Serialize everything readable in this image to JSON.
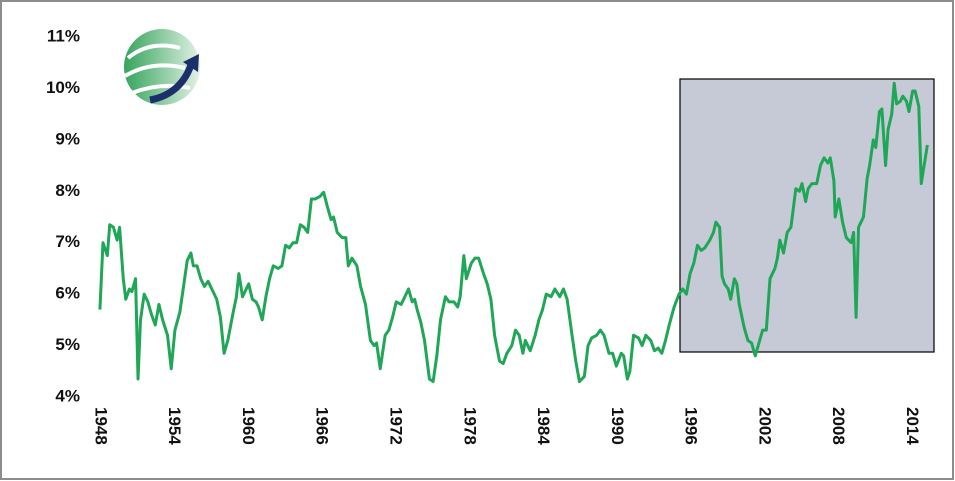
{
  "chart_data": {
    "type": "line",
    "color": "#1fa757",
    "xlim": [
      1947.6,
      2016
    ],
    "xticks": [
      1948,
      1954,
      1960,
      1966,
      1972,
      1978,
      1984,
      1990,
      1996,
      2002,
      2008,
      2014
    ],
    "ylim": [
      4,
      11
    ],
    "yticks": [
      {
        "value": 4,
        "label": "4%"
      },
      {
        "value": 5,
        "label": "5%"
      },
      {
        "value": 6,
        "label": "6%"
      },
      {
        "value": 7,
        "label": "7%"
      },
      {
        "value": 8,
        "label": "8%"
      },
      {
        "value": 9,
        "label": "9%"
      },
      {
        "value": 10,
        "label": "10%"
      },
      {
        "value": 11,
        "label": "11%"
      }
    ],
    "x": [
      1948.0,
      1948.25,
      1948.6,
      1948.8,
      1949.1,
      1949.4,
      1949.6,
      1949.9,
      1950.1,
      1950.4,
      1950.6,
      1950.9,
      1951.1,
      1951.3,
      1951.6,
      1951.9,
      1952.2,
      1952.5,
      1952.8,
      1953.1,
      1953.5,
      1953.8,
      1954.1,
      1954.5,
      1954.8,
      1955.1,
      1955.4,
      1955.6,
      1955.9,
      1956.2,
      1956.5,
      1956.8,
      1957.1,
      1957.5,
      1957.8,
      1958.1,
      1958.4,
      1958.8,
      1959.1,
      1959.3,
      1959.6,
      1959.9,
      1960.1,
      1960.4,
      1960.7,
      1960.9,
      1961.2,
      1961.5,
      1961.8,
      1962.1,
      1962.5,
      1962.8,
      1963.1,
      1963.4,
      1963.7,
      1964.0,
      1964.3,
      1964.6,
      1964.9,
      1965.2,
      1965.5,
      1965.9,
      1966.2,
      1966.5,
      1966.8,
      1967.0,
      1967.3,
      1967.7,
      1968.0,
      1968.2,
      1968.5,
      1968.9,
      1969.2,
      1969.6,
      1970.0,
      1970.3,
      1970.5,
      1970.8,
      1971.2,
      1971.5,
      1971.8,
      1972.1,
      1972.5,
      1972.8,
      1973.1,
      1973.4,
      1973.6,
      1973.8,
      1974.1,
      1974.4,
      1974.8,
      1975.1,
      1975.4,
      1975.7,
      1976.1,
      1976.4,
      1976.8,
      1977.1,
      1977.3,
      1977.6,
      1977.8,
      1978.2,
      1978.5,
      1978.8,
      1979.2,
      1979.5,
      1979.8,
      1980.1,
      1980.5,
      1980.8,
      1981.1,
      1981.5,
      1981.8,
      1982.1,
      1982.4,
      1982.6,
      1983.0,
      1983.4,
      1983.7,
      1984.0,
      1984.3,
      1984.7,
      1985.0,
      1985.4,
      1985.7,
      1986.0,
      1986.4,
      1986.7,
      1987.0,
      1987.4,
      1987.7,
      1988.0,
      1988.4,
      1988.7,
      1989.0,
      1989.4,
      1989.7,
      1990.0,
      1990.4,
      1990.6,
      1990.9,
      1991.1,
      1991.4,
      1991.8,
      1992.1,
      1992.4,
      1992.8,
      1993.1,
      1993.4,
      1993.7,
      1994.0,
      1994.3,
      1994.7,
      1995.1,
      1995.4,
      1995.7,
      1996.0,
      1996.3,
      1996.6,
      1996.9,
      1997.2,
      1997.6,
      1997.9,
      1998.1,
      1998.4,
      1998.6,
      1998.8,
      1999.1,
      1999.3,
      1999.6,
      1999.8,
      2000.0,
      2000.4,
      2000.7,
      2001.0,
      2001.3,
      2001.6,
      2001.9,
      2002.2,
      2002.5,
      2002.9,
      2003.1,
      2003.3,
      2003.6,
      2003.9,
      2004.2,
      2004.6,
      2004.9,
      2005.1,
      2005.4,
      2005.6,
      2005.9,
      2006.3,
      2006.6,
      2006.9,
      2007.2,
      2007.4,
      2007.7,
      2007.8,
      2008.1,
      2008.4,
      2008.7,
      2009.1,
      2009.3,
      2009.5,
      2009.7,
      2010.1,
      2010.4,
      2010.6,
      2010.9,
      2011.1,
      2011.4,
      2011.6,
      2011.9,
      2012.1,
      2012.4,
      2012.6,
      2012.8,
      2013.1,
      2013.3,
      2013.6,
      2013.8,
      2014.1,
      2014.3,
      2014.6,
      2014.8,
      2015.1,
      2015.3
    ],
    "values": [
      5.7,
      7.0,
      6.75,
      7.35,
      7.3,
      7.05,
      7.3,
      6.3,
      5.9,
      6.1,
      6.05,
      6.3,
      4.35,
      5.5,
      6.0,
      5.85,
      5.6,
      5.4,
      5.8,
      5.5,
      5.2,
      4.55,
      5.3,
      5.65,
      6.15,
      6.65,
      6.8,
      6.55,
      6.55,
      6.3,
      6.15,
      6.25,
      6.1,
      5.9,
      5.55,
      4.85,
      5.1,
      5.6,
      5.95,
      6.4,
      5.95,
      6.1,
      6.2,
      5.9,
      5.85,
      5.75,
      5.5,
      5.95,
      6.3,
      6.55,
      6.5,
      6.55,
      6.95,
      6.9,
      7.0,
      7.0,
      7.35,
      7.3,
      7.2,
      7.85,
      7.85,
      7.9,
      7.98,
      7.7,
      7.45,
      7.5,
      7.2,
      7.1,
      7.1,
      6.55,
      6.7,
      6.55,
      6.15,
      5.8,
      5.1,
      5.0,
      5.05,
      4.55,
      5.2,
      5.3,
      5.55,
      5.85,
      5.8,
      5.95,
      6.1,
      5.85,
      5.9,
      5.7,
      5.45,
      5.1,
      4.35,
      4.3,
      4.8,
      5.5,
      5.95,
      5.85,
      5.85,
      5.75,
      5.95,
      6.75,
      6.3,
      6.6,
      6.7,
      6.7,
      6.4,
      6.2,
      5.9,
      5.2,
      4.7,
      4.65,
      4.85,
      5.0,
      5.3,
      5.2,
      4.85,
      5.1,
      4.9,
      5.2,
      5.5,
      5.7,
      6.0,
      5.95,
      6.1,
      5.95,
      6.1,
      5.9,
      5.2,
      4.7,
      4.3,
      4.4,
      5.0,
      5.15,
      5.2,
      5.3,
      5.2,
      4.85,
      4.85,
      4.6,
      4.85,
      4.8,
      4.35,
      4.5,
      5.2,
      5.15,
      5.0,
      5.2,
      5.1,
      4.9,
      4.95,
      4.85,
      5.1,
      5.4,
      5.75,
      6.0,
      6.1,
      6.0,
      6.4,
      6.6,
      6.95,
      6.85,
      6.9,
      7.05,
      7.2,
      7.4,
      7.3,
      6.35,
      6.2,
      6.1,
      5.9,
      6.3,
      6.2,
      5.8,
      5.35,
      5.1,
      5.05,
      4.8,
      5.05,
      5.3,
      5.3,
      6.3,
      6.5,
      6.7,
      7.05,
      6.8,
      7.2,
      7.3,
      8.05,
      8.0,
      8.15,
      7.8,
      8.05,
      8.15,
      8.15,
      8.5,
      8.65,
      8.55,
      8.65,
      8.2,
      7.5,
      7.85,
      7.4,
      7.1,
      7.0,
      7.2,
      5.55,
      7.3,
      7.5,
      8.25,
      8.5,
      9.0,
      8.85,
      9.55,
      9.6,
      8.5,
      9.2,
      9.5,
      10.1,
      9.7,
      9.75,
      9.85,
      9.75,
      9.55,
      9.95,
      9.95,
      9.65,
      8.15,
      8.6,
      8.9
    ]
  }
}
